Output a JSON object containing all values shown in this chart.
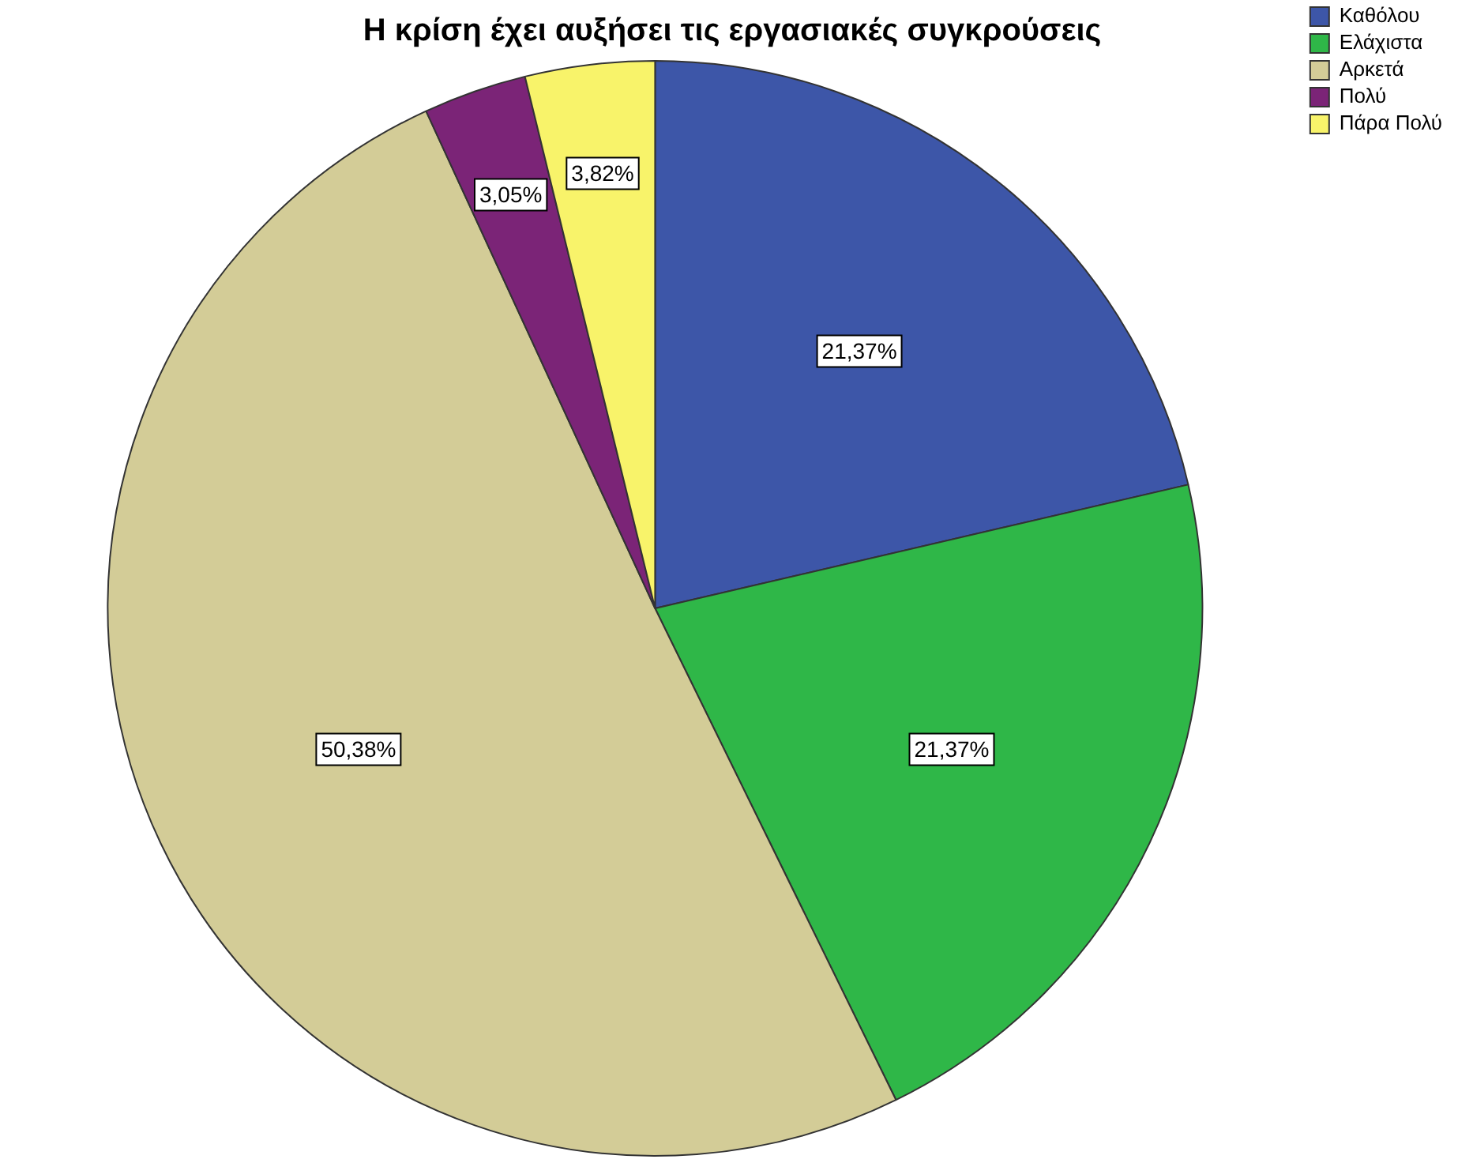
{
  "chart_data": {
    "type": "pie",
    "title": "Η κρίση έχει αυξήσει τις εργασιακές συγκρούσεις",
    "categories": [
      "Καθόλου",
      "Ελάχιστα",
      "Αρκετά",
      "Πολύ",
      "Πάρα Πολύ"
    ],
    "values": [
      21.37,
      21.37,
      50.38,
      3.05,
      3.82
    ],
    "colors": [
      "#3d56a8",
      "#2fb748",
      "#d3cc97",
      "#7b2477",
      "#f8f36a"
    ],
    "value_labels": [
      "21,37%",
      "21,37%",
      "50,38%",
      "3,05%",
      "3,82%"
    ],
    "legend": "top right"
  }
}
